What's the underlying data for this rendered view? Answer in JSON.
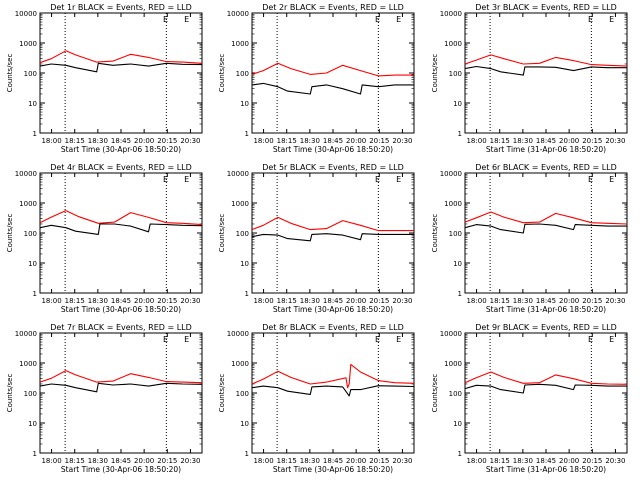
{
  "colors": {
    "events": "#000000",
    "lld": "#ff0000",
    "frame": "#000000"
  },
  "chart_data": [
    {
      "type": "line",
      "title": "Det 1r BLACK = Events, RED = LLD",
      "ylabel": "Counts/sec",
      "xlabel": "Start Time (30-Apr-06 18:50:20)",
      "x_ticks": [
        "18:00",
        "18:15",
        "18:30",
        "18:45",
        "20:00",
        "20:15",
        "20:30"
      ],
      "y_ticks": [
        "1",
        "10",
        "100",
        "1000",
        "10000"
      ],
      "y_scale": "log",
      "ylim": [
        1,
        10000
      ],
      "xlim": [
        0,
        1
      ],
      "markers": [
        "E",
        "E"
      ],
      "series": [
        {
          "x": [
            0,
            0.07,
            0.16,
            0.22,
            0.35,
            0.45,
            0.56,
            0.67,
            0.78,
            0.88,
            1.0
          ],
          "values": [
            220,
            300,
            550,
            400,
            230,
            250,
            420,
            330,
            240,
            230,
            210
          ]
        },
        {
          "x": [
            0,
            0.07,
            0.16,
            0.22,
            0.35,
            0.36,
            0.45,
            0.56,
            0.67,
            0.78,
            0.88,
            1.0
          ],
          "values": [
            170,
            200,
            180,
            150,
            110,
            210,
            180,
            200,
            170,
            210,
            195,
            190
          ]
        }
      ]
    },
    {
      "type": "line",
      "title": "Det 2r BLACK = Events, RED = LLD",
      "ylabel": "Counts/sec",
      "xlabel": "Start Time (30-Apr-06 18:50:20)",
      "x_ticks": [
        "18:00",
        "18:15",
        "18:30",
        "18:45",
        "20:00",
        "20:15",
        "20:30"
      ],
      "y_ticks": [
        "1",
        "10",
        "100",
        "1000",
        "10000"
      ],
      "y_scale": "log",
      "ylim": [
        1,
        10000
      ],
      "xlim": [
        0,
        1
      ],
      "markers": [
        "E",
        "E"
      ],
      "series": [
        {
          "x": [
            0,
            0.07,
            0.16,
            0.24,
            0.36,
            0.46,
            0.56,
            0.67,
            0.78,
            0.88,
            1.0
          ],
          "values": [
            90,
            120,
            210,
            140,
            90,
            100,
            180,
            120,
            80,
            85,
            85
          ]
        },
        {
          "x": [
            0,
            0.07,
            0.16,
            0.22,
            0.36,
            0.37,
            0.46,
            0.56,
            0.67,
            0.68,
            0.78,
            0.88,
            1.0
          ],
          "values": [
            40,
            45,
            35,
            25,
            20,
            35,
            40,
            30,
            20,
            40,
            35,
            40,
            40
          ]
        }
      ]
    },
    {
      "type": "line",
      "title": "Det 3r BLACK = Events, RED = LLD",
      "ylabel": "Counts/sec",
      "xlabel": "Start Time (31-Apr-06 18:50:20)",
      "x_ticks": [
        "18:00",
        "18:15",
        "18:30",
        "18:45",
        "20:00",
        "20:15",
        "20:30"
      ],
      "y_ticks": [
        "1",
        "10",
        "100",
        "1000",
        "10000"
      ],
      "y_scale": "log",
      "ylim": [
        1,
        10000
      ],
      "xlim": [
        0,
        1
      ],
      "markers": [
        "E",
        "E"
      ],
      "series": [
        {
          "x": [
            0,
            0.07,
            0.16,
            0.24,
            0.36,
            0.46,
            0.56,
            0.67,
            0.78,
            0.88,
            1.0
          ],
          "values": [
            200,
            270,
            400,
            300,
            200,
            210,
            330,
            260,
            190,
            180,
            170
          ]
        },
        {
          "x": [
            0,
            0.07,
            0.16,
            0.22,
            0.36,
            0.37,
            0.46,
            0.56,
            0.67,
            0.78,
            0.88,
            1.0
          ],
          "values": [
            140,
            165,
            140,
            110,
            85,
            160,
            160,
            155,
            120,
            160,
            150,
            150
          ]
        }
      ]
    },
    {
      "type": "line",
      "title": "Det 4r BLACK = Events, RED = LLD",
      "ylabel": "Counts/sec",
      "xlabel": "Start Time (30-Apr-06 18:50:20)",
      "x_ticks": [
        "18:00",
        "18:15",
        "18:30",
        "18:45",
        "20:00",
        "20:15",
        "20:30"
      ],
      "y_ticks": [
        "1",
        "10",
        "100",
        "1000",
        "10000"
      ],
      "y_scale": "log",
      "ylim": [
        1,
        10000
      ],
      "xlim": [
        0,
        1
      ],
      "markers": [
        "E",
        "E"
      ],
      "series": [
        {
          "x": [
            0,
            0.07,
            0.16,
            0.24,
            0.36,
            0.46,
            0.56,
            0.67,
            0.78,
            0.88,
            1.0
          ],
          "values": [
            220,
            340,
            560,
            350,
            210,
            230,
            480,
            330,
            220,
            210,
            190
          ]
        },
        {
          "x": [
            0,
            0.07,
            0.16,
            0.22,
            0.36,
            0.37,
            0.46,
            0.56,
            0.67,
            0.68,
            0.78,
            0.88,
            1.0
          ],
          "values": [
            150,
            180,
            150,
            115,
            90,
            200,
            200,
            170,
            110,
            200,
            190,
            180,
            175
          ]
        }
      ]
    },
    {
      "type": "line",
      "title": "Det 5r BLACK = Events, RED = LLD",
      "ylabel": "Counts/sec",
      "xlabel": "Start Time (30-Apr-06 18:50:20)",
      "x_ticks": [
        "18:00",
        "18:15",
        "18:30",
        "18:45",
        "20:00",
        "20:15",
        "20:30"
      ],
      "y_ticks": [
        "1",
        "10",
        "100",
        "1000",
        "10000"
      ],
      "y_scale": "log",
      "ylim": [
        1,
        10000
      ],
      "xlim": [
        0,
        1
      ],
      "markers": [
        "E",
        "E"
      ],
      "series": [
        {
          "x": [
            0,
            0.07,
            0.16,
            0.24,
            0.36,
            0.46,
            0.56,
            0.67,
            0.78,
            0.88,
            1.0
          ],
          "values": [
            130,
            180,
            330,
            210,
            130,
            140,
            260,
            180,
            120,
            120,
            120
          ]
        },
        {
          "x": [
            0,
            0.07,
            0.16,
            0.22,
            0.36,
            0.37,
            0.46,
            0.56,
            0.67,
            0.68,
            0.78,
            0.88,
            1.0
          ],
          "values": [
            75,
            90,
            85,
            65,
            55,
            90,
            95,
            85,
            60,
            95,
            90,
            90,
            90
          ]
        }
      ]
    },
    {
      "type": "line",
      "title": "Det 6r BLACK = Events, RED = LLD",
      "ylabel": "Counts/sec",
      "xlabel": "Start Time (31-Apr-06 18:50:20)",
      "x_ticks": [
        "18:00",
        "18:15",
        "18:30",
        "18:45",
        "20:00",
        "20:15",
        "20:30"
      ],
      "y_ticks": [
        "1",
        "10",
        "100",
        "1000",
        "10000"
      ],
      "y_scale": "log",
      "ylim": [
        1,
        10000
      ],
      "xlim": [
        0,
        1
      ],
      "markers": [
        "E",
        "E"
      ],
      "series": [
        {
          "x": [
            0,
            0.07,
            0.16,
            0.24,
            0.36,
            0.46,
            0.56,
            0.67,
            0.78,
            0.88,
            1.0
          ],
          "values": [
            230,
            320,
            500,
            340,
            220,
            230,
            450,
            320,
            220,
            210,
            200
          ]
        },
        {
          "x": [
            0,
            0.07,
            0.16,
            0.22,
            0.36,
            0.37,
            0.46,
            0.56,
            0.67,
            0.68,
            0.78,
            0.88,
            1.0
          ],
          "values": [
            150,
            190,
            170,
            130,
            100,
            195,
            200,
            180,
            130,
            190,
            180,
            170,
            170
          ]
        }
      ]
    },
    {
      "type": "line",
      "title": "Det 7r BLACK = Events, RED = LLD",
      "ylabel": "Counts/sec",
      "xlabel": "Start Time (30-Apr-06 18:50:20)",
      "x_ticks": [
        "18:00",
        "18:15",
        "18:30",
        "18:45",
        "20:00",
        "20:15",
        "20:30"
      ],
      "y_ticks": [
        "1",
        "10",
        "100",
        "1000",
        "10000"
      ],
      "y_scale": "log",
      "ylim": [
        1,
        10000
      ],
      "xlim": [
        0,
        1
      ],
      "markers": [
        "E",
        "E"
      ],
      "series": [
        {
          "x": [
            0,
            0.07,
            0.16,
            0.22,
            0.35,
            0.45,
            0.56,
            0.67,
            0.78,
            0.88,
            1.0
          ],
          "values": [
            230,
            310,
            560,
            400,
            230,
            250,
            440,
            330,
            240,
            230,
            220
          ]
        },
        {
          "x": [
            0,
            0.07,
            0.16,
            0.22,
            0.35,
            0.36,
            0.45,
            0.56,
            0.67,
            0.78,
            0.88,
            1.0
          ],
          "values": [
            170,
            200,
            180,
            150,
            110,
            210,
            185,
            200,
            170,
            210,
            200,
            195
          ]
        }
      ]
    },
    {
      "type": "line",
      "title": "Det 8r BLACK = Events, RED = LLD",
      "ylabel": "Counts/sec",
      "xlabel": "Start Time (30-Apr-06 18:50:20)",
      "x_ticks": [
        "18:00",
        "18:15",
        "18:30",
        "18:45",
        "20:00",
        "20:15",
        "20:30"
      ],
      "y_ticks": [
        "1",
        "10",
        "100",
        "1000",
        "10000"
      ],
      "y_scale": "log",
      "ylim": [
        1,
        10000
      ],
      "xlim": [
        0,
        1
      ],
      "markers": [
        "E",
        "E"
      ],
      "series": [
        {
          "x": [
            0,
            0.07,
            0.16,
            0.24,
            0.36,
            0.46,
            0.58,
            0.59,
            0.6,
            0.61,
            0.67,
            0.78,
            0.88,
            1.0
          ],
          "values": [
            200,
            290,
            530,
            330,
            200,
            230,
            320,
            150,
            200,
            900,
            500,
            260,
            220,
            210
          ]
        },
        {
          "x": [
            0,
            0.07,
            0.16,
            0.22,
            0.36,
            0.37,
            0.46,
            0.56,
            0.6,
            0.61,
            0.67,
            0.78,
            0.88,
            1.0
          ],
          "values": [
            150,
            170,
            150,
            115,
            90,
            160,
            170,
            160,
            80,
            130,
            130,
            175,
            170,
            165
          ]
        }
      ]
    },
    {
      "type": "line",
      "title": "Det 9r BLACK = Events, RED = LLD",
      "ylabel": "Counts/sec",
      "xlabel": "Start Time (31-Apr-06 18:50:20)",
      "x_ticks": [
        "18:00",
        "18:15",
        "18:30",
        "18:45",
        "20:00",
        "20:15",
        "20:30"
      ],
      "y_ticks": [
        "1",
        "10",
        "100",
        "1000",
        "10000"
      ],
      "y_scale": "log",
      "ylim": [
        1,
        10000
      ],
      "xlim": [
        0,
        1
      ],
      "markers": [
        "E",
        "E"
      ],
      "series": [
        {
          "x": [
            0,
            0.07,
            0.16,
            0.24,
            0.36,
            0.46,
            0.56,
            0.67,
            0.78,
            0.88,
            1.0
          ],
          "values": [
            220,
            320,
            500,
            330,
            210,
            220,
            400,
            300,
            210,
            200,
            195
          ]
        },
        {
          "x": [
            0,
            0.07,
            0.16,
            0.22,
            0.36,
            0.37,
            0.46,
            0.56,
            0.67,
            0.68,
            0.78,
            0.88,
            1.0
          ],
          "values": [
            140,
            180,
            170,
            130,
            100,
            185,
            195,
            180,
            130,
            185,
            180,
            170,
            170
          ]
        }
      ]
    }
  ]
}
